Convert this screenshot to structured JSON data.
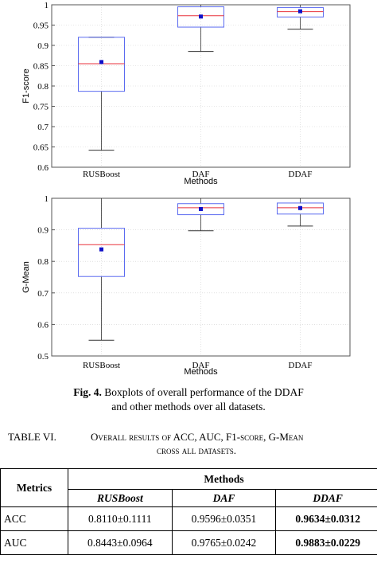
{
  "chart_data": [
    {
      "type": "boxplot",
      "xlabel": "Methods",
      "ylabel": "F1-score",
      "ylim": [
        0.6,
        1.0
      ],
      "yticks": [
        "0.6",
        "0.65",
        "0.7",
        "0.75",
        "0.8",
        "0.85",
        "0.9",
        "0.95",
        "1"
      ],
      "categories": [
        "RUSBoost",
        "DAF",
        "DDAF"
      ],
      "boxes": [
        {
          "whisker_low": 0.642,
          "q1": 0.787,
          "median": 0.855,
          "q3": 0.92,
          "whisker_high": 0.92,
          "mean": 0.859
        },
        {
          "whisker_low": 0.885,
          "q1": 0.945,
          "median": 0.973,
          "q3": 0.995,
          "whisker_high": 1.0,
          "mean": 0.971
        },
        {
          "whisker_low": 0.94,
          "q1": 0.97,
          "median": 0.983,
          "q3": 0.993,
          "whisker_high": 1.0,
          "mean": 0.984
        }
      ],
      "grid": true
    },
    {
      "type": "boxplot",
      "xlabel": "Methods",
      "ylabel": "G-Mean",
      "ylim": [
        0.5,
        1.0
      ],
      "yticks": [
        "0.5",
        "0.6",
        "0.7",
        "0.8",
        "0.9",
        "1"
      ],
      "categories": [
        "RUSBoost",
        "DAF",
        "DDAF"
      ],
      "boxes": [
        {
          "whisker_low": 0.55,
          "q1": 0.752,
          "median": 0.853,
          "q3": 0.905,
          "whisker_high": 1.0,
          "mean": 0.838
        },
        {
          "whisker_low": 0.897,
          "q1": 0.948,
          "median": 0.97,
          "q3": 0.983,
          "whisker_high": 1.0,
          "mean": 0.966
        },
        {
          "whisker_low": 0.912,
          "q1": 0.95,
          "median": 0.97,
          "q3": 0.985,
          "whisker_high": 1.0,
          "mean": 0.969
        }
      ],
      "grid": true
    }
  ],
  "colors": {
    "box": "#5b6bf0",
    "median": "#e8323c",
    "mean": "#1010c8",
    "whisker": "#333333",
    "grid": "#cfcfcf"
  },
  "caption": {
    "label": "Fig. 4.",
    "line1": " Boxplots of overall performance of the DDAF",
    "line2": "and other methods over all datasets."
  },
  "table": {
    "number": "TABLE VI.",
    "title_line1": "Overall results of ACC, AUC, F1-score, G-Mean",
    "title_line2": "cross all datasets.",
    "header_metrics": "Metrics",
    "header_methods": "Methods",
    "methods": [
      "RUSBoost",
      "DAF",
      "DDAF"
    ],
    "rows": [
      {
        "metric": "ACC",
        "values": [
          "0.8110±0.1111",
          "0.9596±0.0351",
          "0.9634±0.0312"
        ]
      },
      {
        "metric": "AUC",
        "values": [
          "0.8443±0.0964",
          "0.9765±0.0242",
          "0.9883±0.0229"
        ]
      }
    ]
  }
}
